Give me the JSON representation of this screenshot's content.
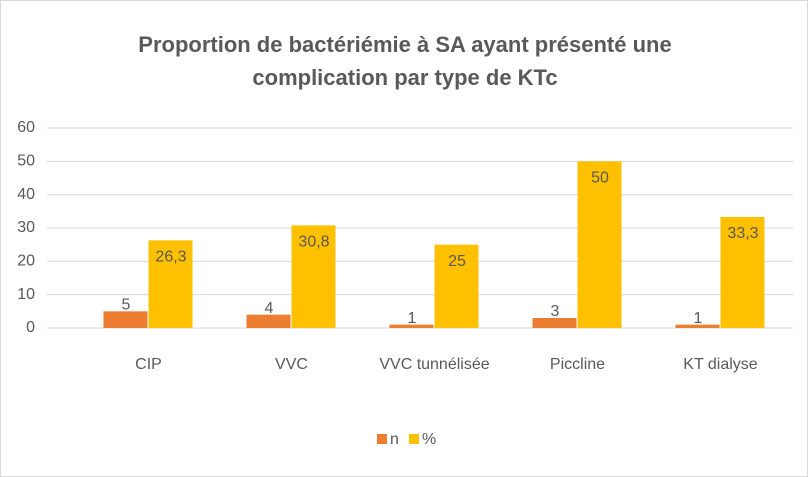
{
  "chart_data": {
    "type": "bar",
    "title": "Proportion de bactériémie à SA ayant présenté une complication par type de KTc",
    "categories": [
      "CIP",
      "VVC",
      "VVC tunnélisée",
      "Piccline",
      "KT dialyse"
    ],
    "series": [
      {
        "name": "n",
        "color": "#ed7d31",
        "values": [
          5,
          4,
          1,
          3,
          1
        ]
      },
      {
        "name": "%",
        "color": "#ffc000",
        "values": [
          26.3,
          30.8,
          25,
          50,
          33.3
        ],
        "value_labels": [
          "26,3",
          "30,8",
          "25",
          "50",
          "33,3"
        ]
      }
    ],
    "ylim": [
      0,
      60
    ],
    "yticks": [
      0,
      10,
      20,
      30,
      40,
      50,
      60
    ],
    "grid": true,
    "legend": "bottom"
  }
}
